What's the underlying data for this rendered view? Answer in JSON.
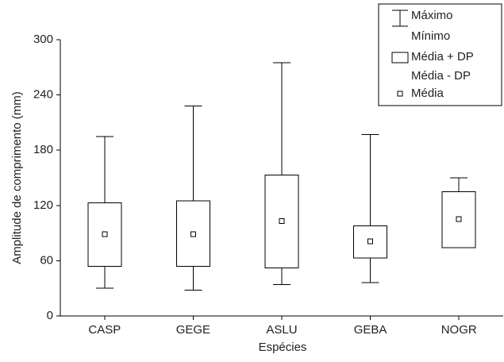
{
  "chart_data": {
    "type": "box",
    "y_label": "Amplitude de comprimento (mm)",
    "x_label": "Espécies",
    "categories": [
      "CASP",
      "GEGE",
      "ASLU",
      "GEBA",
      "NOGR"
    ],
    "max": [
      195,
      228,
      275,
      197,
      150
    ],
    "min": [
      30,
      28,
      34,
      36,
      74
    ],
    "upper": [
      123,
      125,
      153,
      98,
      135
    ],
    "lower": [
      54,
      54,
      52,
      63,
      74
    ],
    "mean": [
      89,
      89,
      103,
      81,
      105
    ],
    "legend": [
      "Máximo",
      "Mínimo",
      "Média + DP",
      "Média - DP",
      "Média"
    ],
    "color": "#000000",
    "ylim": [
      0,
      300
    ],
    "yticks": [
      0,
      60,
      120,
      180,
      240,
      300
    ]
  }
}
